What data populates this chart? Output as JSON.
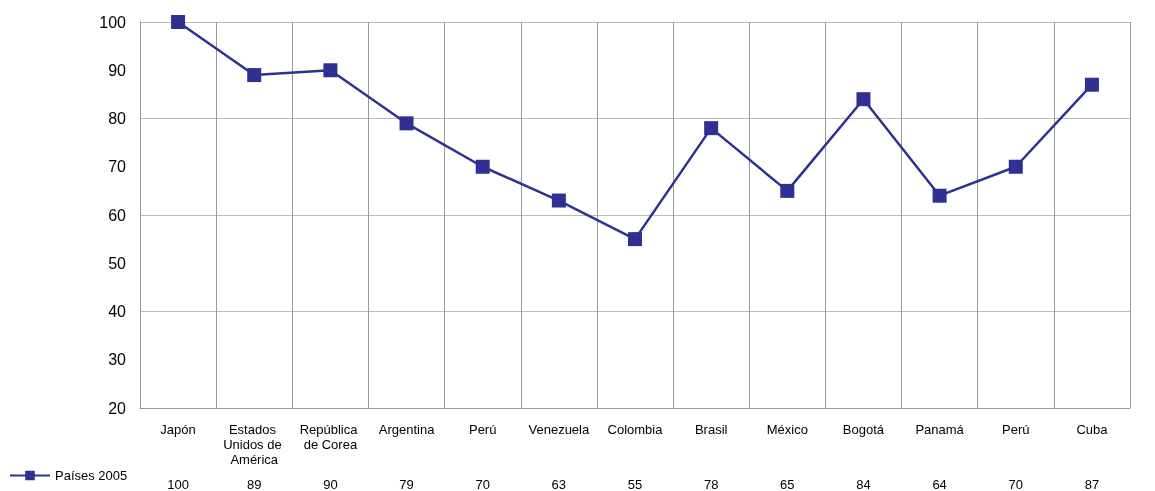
{
  "chart_data": {
    "type": "line",
    "categories": [
      "Japón",
      "Estados Unidos de América",
      "República de Corea",
      "Argentina",
      "Perú",
      "Venezuela",
      "Colombia",
      "Brasil",
      "México",
      "Bogotá",
      "Panamá",
      "Perú",
      "Cuba"
    ],
    "series": [
      {
        "name": "Países 2005",
        "color": "#2e3192",
        "values": [
          100,
          89,
          90,
          79,
          70,
          63,
          55,
          78,
          65,
          84,
          64,
          70,
          87
        ]
      }
    ],
    "ylim": [
      20,
      100
    ],
    "yticks": [
      20,
      30,
      40,
      50,
      60,
      70,
      80,
      90,
      100
    ],
    "grid": true,
    "legend": "bottom left",
    "marker": "square",
    "line_style": "solid",
    "data_labels": true
  }
}
